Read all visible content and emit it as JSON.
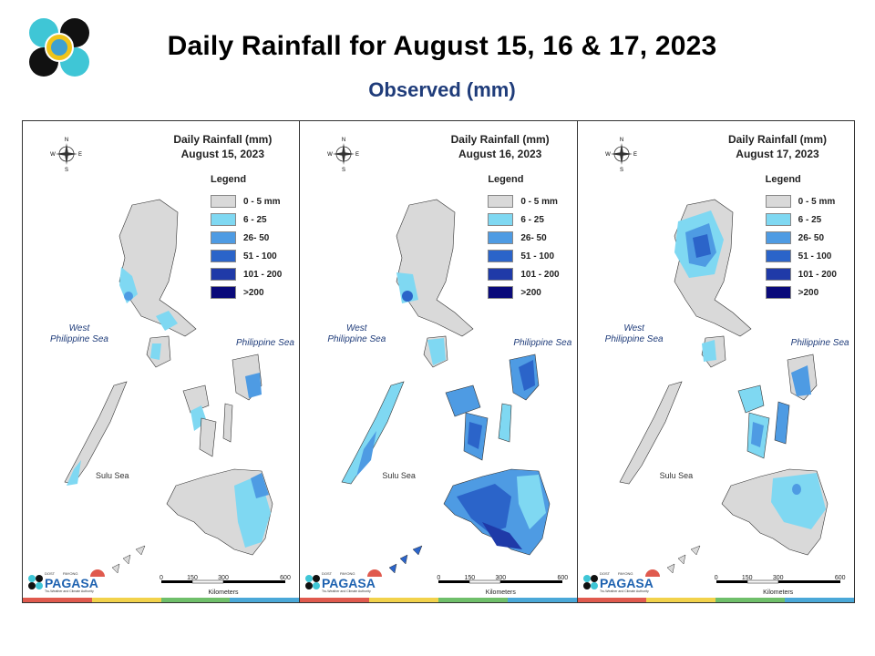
{
  "title": "Daily Rainfall for August 15, 16 & 17, 2023",
  "subtitle": "Observed (mm)",
  "legend": {
    "title": "Legend",
    "classes": [
      {
        "label": "0 - 5 mm",
        "color": "#d9d9d9"
      },
      {
        "label": "6 - 25",
        "color": "#7fd8f2"
      },
      {
        "label": "26- 50",
        "color": "#4e9be3"
      },
      {
        "label": "51 - 100",
        "color": "#2b64c9"
      },
      {
        "label": "101 - 200",
        "color": "#1f3aa8"
      },
      {
        "label": ">200",
        "color": "#0a0a7a"
      }
    ]
  },
  "panels": [
    {
      "heading": "Daily Rainfall (mm)",
      "date": "August 15, 2023"
    },
    {
      "heading": "Daily Rainfall (mm)",
      "date": "August 16, 2023"
    },
    {
      "heading": "Daily Rainfall (mm)",
      "date": "August 17, 2023"
    }
  ],
  "seas": {
    "west": "West\nPhilippine Sea",
    "east": "Philippine Sea",
    "sulu": "Sulu Sea"
  },
  "compass_letters": {
    "n": "N",
    "s": "S",
    "e": "E",
    "w": "W"
  },
  "scale": {
    "ticks": [
      "0",
      "150",
      "300",
      "600"
    ],
    "unit": "Kilometers"
  },
  "brand": {
    "agency": "PAGASA",
    "dost": "DOST",
    "tagline": "Tru-Weather and Climate Authority",
    "payong": "PAYONG"
  },
  "stripe_colors": [
    "#e05a4e",
    "#f2d24b",
    "#6fbf6a",
    "#4aa8d8"
  ]
}
